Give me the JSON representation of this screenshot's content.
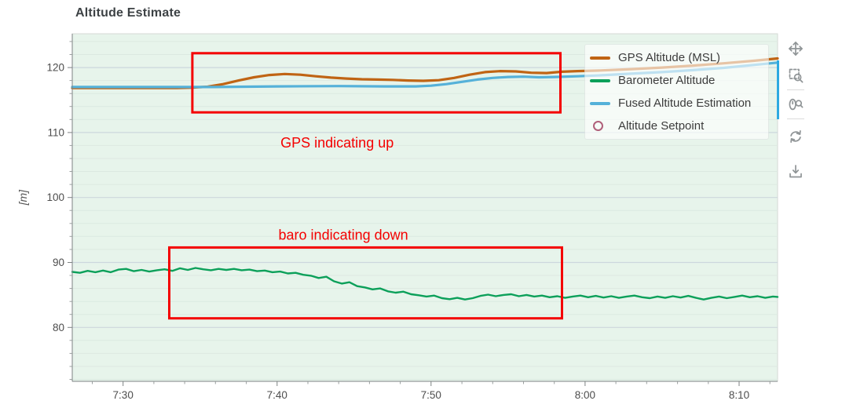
{
  "chart_data": {
    "type": "line",
    "title": "Altitude Estimate",
    "ylabel": "[m]",
    "x_axis": {
      "ticks": [
        {
          "t": 30,
          "label": "7:30"
        },
        {
          "t": 40,
          "label": "7:40"
        },
        {
          "t": 50,
          "label": "7:50"
        },
        {
          "t": 60,
          "label": "8:00"
        },
        {
          "t": 70,
          "label": "8:10"
        }
      ],
      "minor_tick_step_min": 2,
      "range_min": [
        26.7,
        72.5
      ]
    },
    "y_axis": {
      "major_ticks": [
        80,
        90,
        100,
        110,
        120
      ],
      "minor_tick_step": 2,
      "range": [
        71.7,
        125.2
      ]
    },
    "grid": {
      "horizontal_major": true,
      "horizontal_minor": true,
      "vertical": false
    },
    "plot_bg_color": "#e7f4eb",
    "major_grid_color": "#ccd7dd",
    "minor_grid_color": "#dce9e1",
    "series": [
      {
        "name": "gps-altitude",
        "legend_label": "GPS Altitude (MSL)",
        "color": "#c06414",
        "line_width": 3.2,
        "glyph": "line",
        "points": [
          [
            26.7,
            116.85
          ],
          [
            33.5,
            116.85
          ],
          [
            34.5,
            116.9
          ],
          [
            35.5,
            117.05
          ],
          [
            36.5,
            117.45
          ],
          [
            37.5,
            118.0
          ],
          [
            38.5,
            118.5
          ],
          [
            39.5,
            118.85
          ],
          [
            40.5,
            119.0
          ],
          [
            41.5,
            118.9
          ],
          [
            42.5,
            118.65
          ],
          [
            43.5,
            118.45
          ],
          [
            44.5,
            118.3
          ],
          [
            45.5,
            118.2
          ],
          [
            46.5,
            118.15
          ],
          [
            47.5,
            118.1
          ],
          [
            48.5,
            118.0
          ],
          [
            49.5,
            117.95
          ],
          [
            50.5,
            118.05
          ],
          [
            51.5,
            118.4
          ],
          [
            52.5,
            118.9
          ],
          [
            53.5,
            119.3
          ],
          [
            54.5,
            119.45
          ],
          [
            55.5,
            119.4
          ],
          [
            56.5,
            119.2
          ],
          [
            57.5,
            119.15
          ],
          [
            58.5,
            119.35
          ],
          [
            59.5,
            119.45
          ],
          [
            61,
            119.55
          ],
          [
            63,
            119.75
          ],
          [
            65,
            120.0
          ],
          [
            67,
            120.3
          ],
          [
            69,
            120.65
          ],
          [
            71,
            121.05
          ],
          [
            72.5,
            121.4
          ]
        ]
      },
      {
        "name": "barometer-altitude",
        "legend_label": "Barometer Altitude",
        "color": "#0ca05a",
        "line_width": 2.4,
        "glyph": "line",
        "points": [
          [
            26.7,
            88.55
          ],
          [
            27.2,
            88.4
          ],
          [
            27.7,
            88.7
          ],
          [
            28.2,
            88.5
          ],
          [
            28.7,
            88.75
          ],
          [
            29.2,
            88.5
          ],
          [
            29.7,
            88.9
          ],
          [
            30.2,
            89.0
          ],
          [
            30.7,
            88.65
          ],
          [
            31.2,
            88.85
          ],
          [
            31.7,
            88.6
          ],
          [
            32.2,
            88.8
          ],
          [
            32.7,
            88.95
          ],
          [
            33.2,
            88.7
          ],
          [
            33.7,
            89.1
          ],
          [
            34.2,
            88.85
          ],
          [
            34.7,
            89.15
          ],
          [
            35.2,
            88.95
          ],
          [
            35.7,
            88.8
          ],
          [
            36.2,
            89.0
          ],
          [
            36.7,
            88.85
          ],
          [
            37.2,
            89.0
          ],
          [
            37.7,
            88.8
          ],
          [
            38.2,
            88.9
          ],
          [
            38.7,
            88.65
          ],
          [
            39.2,
            88.75
          ],
          [
            39.7,
            88.5
          ],
          [
            40.2,
            88.6
          ],
          [
            40.7,
            88.3
          ],
          [
            41.2,
            88.4
          ],
          [
            41.7,
            88.1
          ],
          [
            42.2,
            87.95
          ],
          [
            42.7,
            87.6
          ],
          [
            43.2,
            87.8
          ],
          [
            43.7,
            87.1
          ],
          [
            44.2,
            86.75
          ],
          [
            44.7,
            86.95
          ],
          [
            45.2,
            86.35
          ],
          [
            45.7,
            86.15
          ],
          [
            46.2,
            85.85
          ],
          [
            46.7,
            86.0
          ],
          [
            47.2,
            85.55
          ],
          [
            47.7,
            85.35
          ],
          [
            48.2,
            85.5
          ],
          [
            48.7,
            85.1
          ],
          [
            49.2,
            84.95
          ],
          [
            49.7,
            84.75
          ],
          [
            50.2,
            84.9
          ],
          [
            50.7,
            84.5
          ],
          [
            51.2,
            84.35
          ],
          [
            51.7,
            84.55
          ],
          [
            52.2,
            84.3
          ],
          [
            52.7,
            84.5
          ],
          [
            53.2,
            84.85
          ],
          [
            53.7,
            85.05
          ],
          [
            54.2,
            84.8
          ],
          [
            54.7,
            85.0
          ],
          [
            55.2,
            85.1
          ],
          [
            55.7,
            84.8
          ],
          [
            56.2,
            85.0
          ],
          [
            56.7,
            84.75
          ],
          [
            57.2,
            84.9
          ],
          [
            57.7,
            84.65
          ],
          [
            58.2,
            84.8
          ],
          [
            58.7,
            84.55
          ],
          [
            59.2,
            84.75
          ],
          [
            59.7,
            84.9
          ],
          [
            60.2,
            84.65
          ],
          [
            60.7,
            84.85
          ],
          [
            61.2,
            84.6
          ],
          [
            61.7,
            84.8
          ],
          [
            62.2,
            84.55
          ],
          [
            62.7,
            84.75
          ],
          [
            63.2,
            84.9
          ],
          [
            63.7,
            84.65
          ],
          [
            64.2,
            84.5
          ],
          [
            64.7,
            84.75
          ],
          [
            65.2,
            84.55
          ],
          [
            65.7,
            84.8
          ],
          [
            66.2,
            84.6
          ],
          [
            66.7,
            84.85
          ],
          [
            67.2,
            84.55
          ],
          [
            67.7,
            84.3
          ],
          [
            68.2,
            84.55
          ],
          [
            68.7,
            84.75
          ],
          [
            69.2,
            84.5
          ],
          [
            69.7,
            84.7
          ],
          [
            70.2,
            84.9
          ],
          [
            70.7,
            84.65
          ],
          [
            71.2,
            84.8
          ],
          [
            71.7,
            84.55
          ],
          [
            72.2,
            84.75
          ],
          [
            72.5,
            84.7
          ]
        ]
      },
      {
        "name": "fused-altitude",
        "legend_label": "Fused Altitude Estimation",
        "color": "#55b1d9",
        "line_width": 3.2,
        "glyph": "line",
        "points": [
          [
            26.7,
            117.0
          ],
          [
            36,
            117.0
          ],
          [
            40,
            117.1
          ],
          [
            44,
            117.15
          ],
          [
            47,
            117.1
          ],
          [
            49,
            117.1
          ],
          [
            50,
            117.2
          ],
          [
            51,
            117.45
          ],
          [
            52,
            117.8
          ],
          [
            53,
            118.15
          ],
          [
            54,
            118.4
          ],
          [
            55,
            118.55
          ],
          [
            56,
            118.6
          ],
          [
            57,
            118.5
          ],
          [
            58,
            118.55
          ],
          [
            59.5,
            118.65
          ],
          [
            61,
            118.8
          ],
          [
            63,
            119.05
          ],
          [
            65,
            119.3
          ],
          [
            67,
            119.6
          ],
          [
            69,
            119.95
          ],
          [
            71,
            120.4
          ],
          [
            72.5,
            120.75
          ]
        ]
      },
      {
        "name": "altitude-setpoint",
        "legend_label": "Altitude Setpoint",
        "color": "#b0607a",
        "glyph": "circle",
        "points": []
      }
    ],
    "legend": {
      "position": "top_right"
    },
    "annotations": {
      "color": "#f40000",
      "boxes": [
        {
          "name": "gps-indicating-up-box",
          "t0": 34.5,
          "t1": 58.4,
          "v0": 113.1,
          "v1": 122.2
        },
        {
          "name": "baro-indicating-down-box",
          "t0": 33.0,
          "t1": 58.5,
          "v0": 81.4,
          "v1": 92.3
        }
      ],
      "labels": [
        {
          "text": "GPS indicating up",
          "t": 43.9,
          "v": 108.4
        },
        {
          "text": "baro indicating down",
          "t": 44.3,
          "v": 94.2
        }
      ]
    }
  },
  "toolbar": {
    "tools": [
      {
        "id": "pan",
        "active": false
      },
      {
        "id": "box-zoom",
        "active": true
      },
      {
        "id": "wheel-zoom",
        "active": true
      },
      {
        "id": "reset",
        "active": false
      },
      {
        "id": "save",
        "active": false
      }
    ]
  }
}
